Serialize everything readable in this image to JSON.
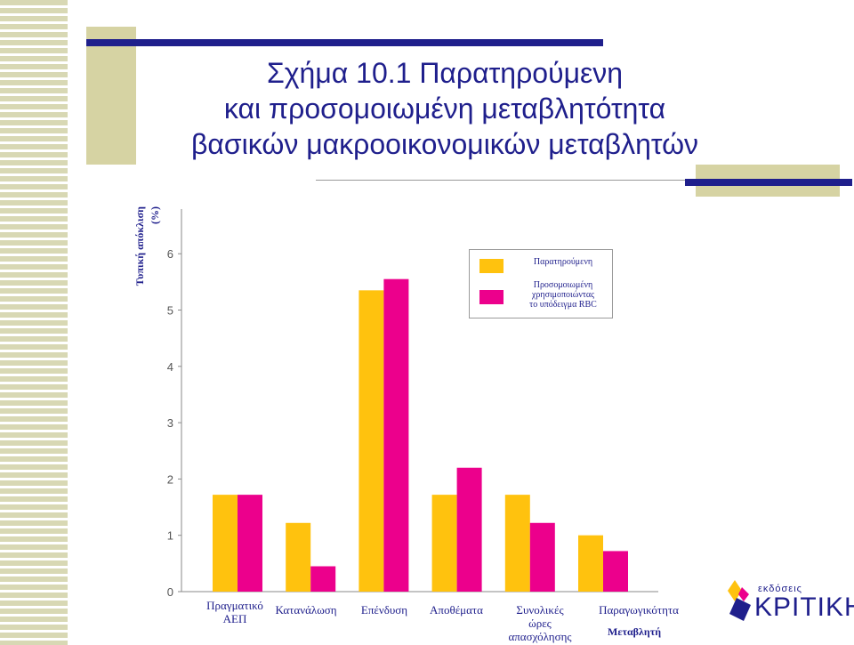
{
  "slide": {
    "title_lines": [
      "Σχήμα 10.1 Παρατηρούμενη",
      "και προσομοιωμένη μεταβλητότητα",
      "βασικών μακροοικονομικών μεταβλητών"
    ]
  },
  "chart_data": {
    "type": "bar",
    "ylabel_line1": "Τυπική απόκλιση",
    "ylabel_line2": "(%)",
    "xlabel": "Μεταβλητή",
    "ylim": [
      0,
      7
    ],
    "yticks": [
      "0",
      "1",
      "2",
      "3",
      "4",
      "5",
      "6"
    ],
    "categories": [
      [
        "Πραγματικό",
        "ΑΕΠ"
      ],
      [
        "Κατανάλωση"
      ],
      [
        "Επένδυση"
      ],
      [
        "Αποθέματα"
      ],
      [
        "Συνολικές",
        "ώρες",
        "απασχόλησης"
      ],
      [
        "Παραγωγικότητα"
      ]
    ],
    "series": [
      {
        "name": "Παρατηρούμενη",
        "color": "#ffc20e",
        "values": [
          1.72,
          1.22,
          5.35,
          1.72,
          1.72,
          1.0
        ]
      },
      {
        "name": "Προσομοιωμένη χρησιμοποιώντας το υπόδειγμα RBC",
        "color": "#ec008c",
        "values": [
          1.72,
          0.45,
          5.55,
          2.2,
          1.22,
          0.72
        ]
      }
    ],
    "legend": {
      "position": "top-right",
      "entry1_line1": "Παρατηρούμενη",
      "entry2_line1": "Προσομοιωμένη",
      "entry2_line2": "χρησιμοποιώντας",
      "entry2_line3": "το υπόδειγμα RBC"
    },
    "grid": false
  },
  "logo": {
    "small_text": "εκδόσεις",
    "big_text": "ΚΡΙΤΙΚΗ"
  }
}
